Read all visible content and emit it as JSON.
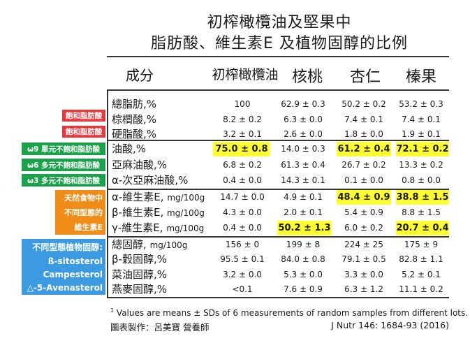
{
  "title": {
    "line1": "初榨橄欖油及堅果中",
    "line2": "脂肪酸、維生素E 及植物固醇的比例"
  },
  "header": {
    "component": "成分",
    "cols": [
      "初榨橄欖油",
      "核桃",
      "杏仁",
      "榛果"
    ]
  },
  "rows": [
    {
      "label": "總脂肪,%",
      "values": [
        "100",
        "62.9 ± 0.3",
        "50.2 ± 0.2",
        "53.2 ± 0.3"
      ],
      "highlight": [
        false,
        false,
        false,
        false
      ]
    },
    {
      "label": "棕櫚酸,%",
      "values": [
        "8.2 ± 0.2",
        "6.3 ± 0.0",
        "7.4 ± 0.1",
        "7.4 ± 0.1"
      ],
      "highlight": [
        false,
        false,
        false,
        false
      ]
    },
    {
      "label": "硬脂酸,%",
      "values": [
        "3.2 ± 0.1",
        "2.6 ± 0.0",
        "1.8 ± 0.0",
        "1.9 ± 0.1"
      ],
      "highlight": [
        false,
        false,
        false,
        false
      ]
    },
    {
      "label": "油酸,%",
      "values": [
        "75.0 ± 0.8",
        "14.0 ± 0.3",
        "61.2 ± 0.4",
        "72.1 ± 0.2"
      ],
      "highlight": [
        true,
        false,
        true,
        true
      ]
    },
    {
      "label": "亞麻油酸,%",
      "values": [
        "6.8 ± 0.2",
        "61.3 ± 0.4",
        "26.7 ± 0.2",
        "13.3 ± 0.2"
      ],
      "highlight": [
        false,
        false,
        false,
        false
      ]
    },
    {
      "label": "α-次亞麻油酸,%",
      "values": [
        "0.4 ± 0.0",
        "14.3 ± 0.1",
        "0.1 ± 0.0",
        "0.8 ± 0.0"
      ],
      "highlight": [
        false,
        false,
        false,
        false
      ]
    },
    {
      "label": "α-維生素E,",
      "unit": "mg/100g",
      "values": [
        "14.7 ± 0.0",
        "4.9 ± 0.1",
        "48.4 ± 0.9",
        "38.8 ± 1.5"
      ],
      "highlight": [
        false,
        false,
        true,
        true
      ]
    },
    {
      "label": "β-維生素E,",
      "unit": "mg/100g",
      "values": [
        "4.3 ± 0.0",
        "2.0 ± 0.1",
        "5.4 ± 0.9",
        "8.8 ± 1.5"
      ],
      "highlight": [
        false,
        false,
        false,
        false
      ]
    },
    {
      "label": "γ-維生素E,",
      "unit": "mg/100g",
      "values": [
        "0.4 ± 0.0",
        "50.2 ± 1.3",
        "6.0 ± 0.2",
        "20.7 ± 0.4"
      ],
      "highlight": [
        false,
        true,
        false,
        true
      ]
    },
    {
      "label": "總固醇,",
      "unit": "mg/100g",
      "values": [
        "156 ± 0",
        "199 ± 8",
        "224 ± 25",
        "175 ± 9"
      ],
      "highlight": [
        false,
        false,
        false,
        false
      ]
    },
    {
      "label": "β-穀固醇,%",
      "values": [
        "95.5 ± 0.1",
        "84.0 ± 0.8",
        "79.1 ± 0.5",
        "82.8 ± 1.1"
      ],
      "highlight": [
        false,
        false,
        false,
        false
      ]
    },
    {
      "label": "菜油固醇,%",
      "values": [
        "3.2 ± 0.0",
        "5.3 ± 0.0",
        "3.3 ± 0.0",
        "5.2 ± 0.1"
      ],
      "highlight": [
        false,
        false,
        false,
        false
      ]
    },
    {
      "label": "燕麥固醇,%",
      "values": [
        "<0.1",
        "7.6 ± 0.9",
        "6.3 ± 1.2",
        "11.1 ± 0.2"
      ],
      "highlight": [
        false,
        false,
        false,
        false
      ]
    }
  ],
  "tags": {
    "saturated_1": "飽和脂肪酸",
    "saturated_2": "飽和脂肪酸",
    "omega9": "ω9 單元不飽和脂肪酸",
    "omega6": "ω6 多元不飽和脂肪酸",
    "omega3": "ω3 多元不飽和脂肪酸",
    "vitamin_e": [
      "天然食物中",
      "不同型態的",
      "維生素E"
    ],
    "sterols": [
      "不同型態植物固醇:",
      "ß-sitosterol",
      "Campesterol",
      "△-5-Avenasterol"
    ]
  },
  "footnote": {
    "marker": "1",
    "text": "Values are means ± SDs of 6 measurements of random samples from different lots."
  },
  "credit": "圖表製作：呂美寶 營養師",
  "citation": "J Nutr 146: 1684-93 (2016)",
  "colors": {
    "highlight": "#ffff33",
    "saturated": "#e8383d",
    "unsaturated": "#1aa24a",
    "vitamin_e": "#f08c18",
    "sterols": "#3c9be0"
  }
}
